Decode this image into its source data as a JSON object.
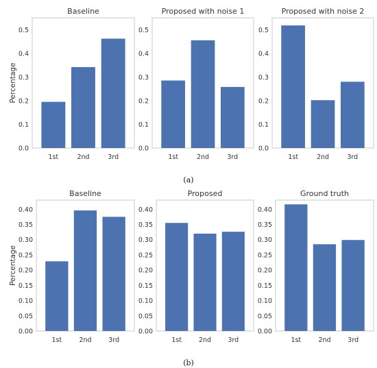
{
  "chart_data": [
    {
      "type": "bar",
      "title": "Baseline",
      "ylabel": "Percentage",
      "categories": [
        "1st",
        "2nd",
        "3rd"
      ],
      "values": [
        0.195,
        0.342,
        0.462
      ],
      "ylim": [
        0,
        0.55
      ],
      "yticks": [
        "0.0",
        "0.1",
        "0.2",
        "0.3",
        "0.4",
        "0.5"
      ],
      "ytick_values": [
        0,
        0.1,
        0.2,
        0.3,
        0.4,
        0.5
      ],
      "color": "#4c72b0",
      "grid": false
    },
    {
      "type": "bar",
      "title": "Proposed with noise 1",
      "ylabel": "",
      "categories": [
        "1st",
        "2nd",
        "3rd"
      ],
      "values": [
        0.285,
        0.455,
        0.258
      ],
      "ylim": [
        0,
        0.55
      ],
      "yticks": [
        "0.0",
        "0.1",
        "0.2",
        "0.3",
        "0.4",
        "0.5"
      ],
      "ytick_values": [
        0,
        0.1,
        0.2,
        0.3,
        0.4,
        0.5
      ],
      "color": "#4c72b0",
      "grid": false
    },
    {
      "type": "bar",
      "title": "Proposed with noise 2",
      "ylabel": "",
      "categories": [
        "1st",
        "2nd",
        "3rd"
      ],
      "values": [
        0.518,
        0.202,
        0.28
      ],
      "ylim": [
        0,
        0.55
      ],
      "yticks": [
        "0.0",
        "0.1",
        "0.2",
        "0.3",
        "0.4",
        "0.5"
      ],
      "ytick_values": [
        0,
        0.1,
        0.2,
        0.3,
        0.4,
        0.5
      ],
      "color": "#4c72b0",
      "grid": false
    },
    {
      "type": "bar",
      "title": "Baseline",
      "ylabel": "Percentage",
      "categories": [
        "1st",
        "2nd",
        "3rd"
      ],
      "values": [
        0.229,
        0.396,
        0.375
      ],
      "ylim": [
        0,
        0.43
      ],
      "yticks": [
        "0.00",
        "0.05",
        "0.10",
        "0.15",
        "0.20",
        "0.25",
        "0.30",
        "0.35",
        "0.40"
      ],
      "ytick_values": [
        0,
        0.05,
        0.1,
        0.15,
        0.2,
        0.25,
        0.3,
        0.35,
        0.4
      ],
      "color": "#4c72b0",
      "grid": false
    },
    {
      "type": "bar",
      "title": "Proposed",
      "ylabel": "",
      "categories": [
        "1st",
        "2nd",
        "3rd"
      ],
      "values": [
        0.355,
        0.32,
        0.326
      ],
      "ylim": [
        0,
        0.43
      ],
      "yticks": [
        "0.00",
        "0.05",
        "0.10",
        "0.15",
        "0.20",
        "0.25",
        "0.30",
        "0.35",
        "0.40"
      ],
      "ytick_values": [
        0,
        0.05,
        0.1,
        0.15,
        0.2,
        0.25,
        0.3,
        0.35,
        0.4
      ],
      "color": "#4c72b0",
      "grid": false
    },
    {
      "type": "bar",
      "title": "Ground truth",
      "ylabel": "",
      "categories": [
        "1st",
        "2nd",
        "3rd"
      ],
      "values": [
        0.416,
        0.285,
        0.299
      ],
      "ylim": [
        0,
        0.43
      ],
      "yticks": [
        "0.00",
        "0.05",
        "0.10",
        "0.15",
        "0.20",
        "0.25",
        "0.30",
        "0.35",
        "0.40"
      ],
      "ytick_values": [
        0,
        0.05,
        0.1,
        0.15,
        0.2,
        0.25,
        0.3,
        0.35,
        0.4
      ],
      "color": "#4c72b0",
      "grid": false
    }
  ],
  "captions": {
    "a": "(a)",
    "b": "(b)"
  }
}
